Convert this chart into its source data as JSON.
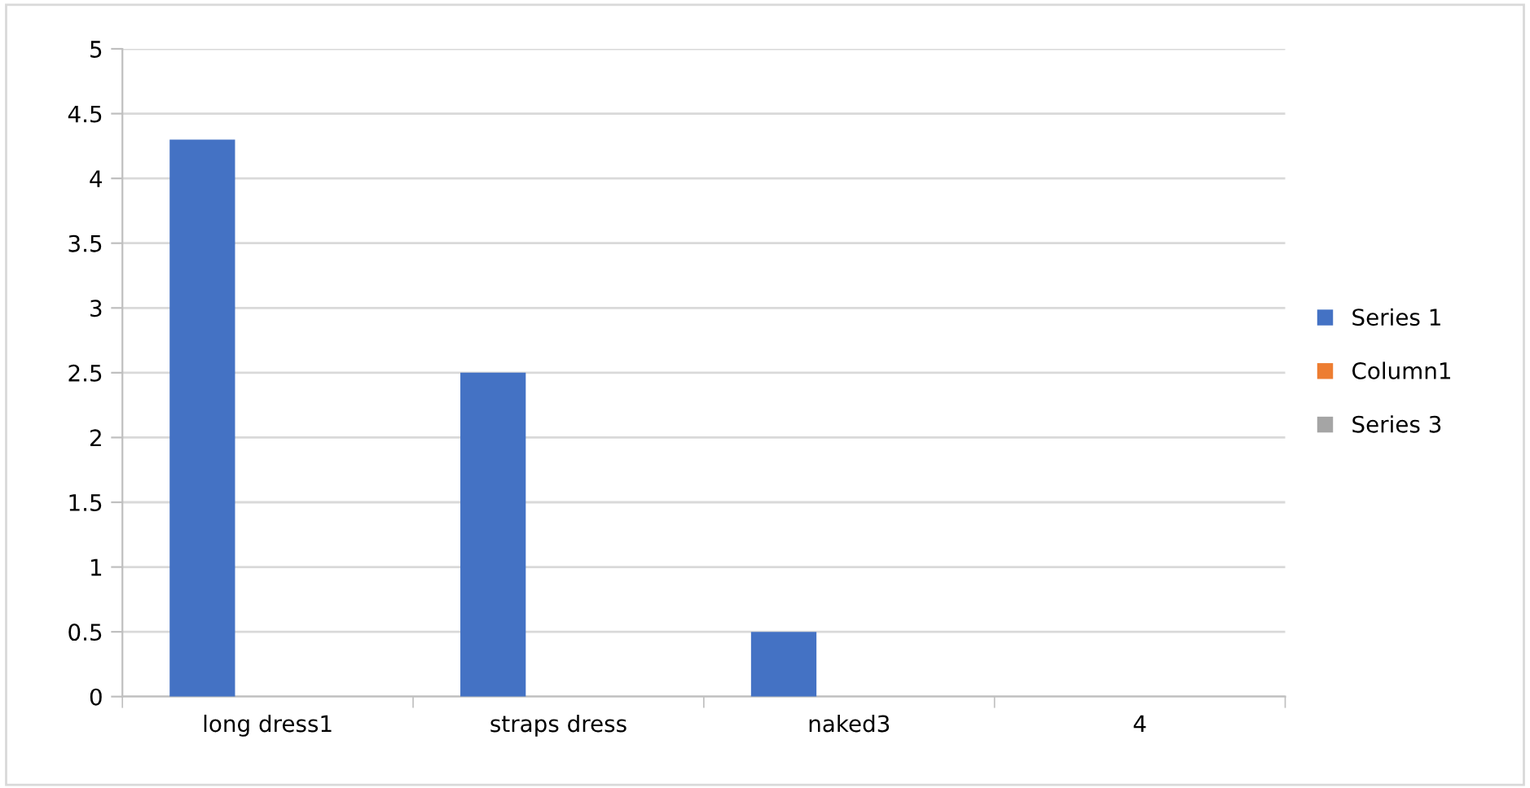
{
  "chart_data": {
    "type": "bar",
    "categories": [
      "long dress1",
      "straps dress",
      "naked3",
      "4"
    ],
    "series": [
      {
        "name": "Series 1",
        "color": "#4472c4",
        "values": [
          4.3,
          2.5,
          0.5,
          null
        ]
      },
      {
        "name": "Column1",
        "color": "#ed7d31",
        "values": [
          null,
          null,
          null,
          null
        ]
      },
      {
        "name": "Series 3",
        "color": "#a5a5a5",
        "values": [
          null,
          null,
          null,
          null
        ]
      }
    ],
    "ylim": [
      0,
      5
    ],
    "yticks": [
      0,
      0.5,
      1,
      1.5,
      2,
      2.5,
      3,
      3.5,
      4,
      4.5,
      5
    ],
    "grid": "y",
    "legend": "right"
  }
}
